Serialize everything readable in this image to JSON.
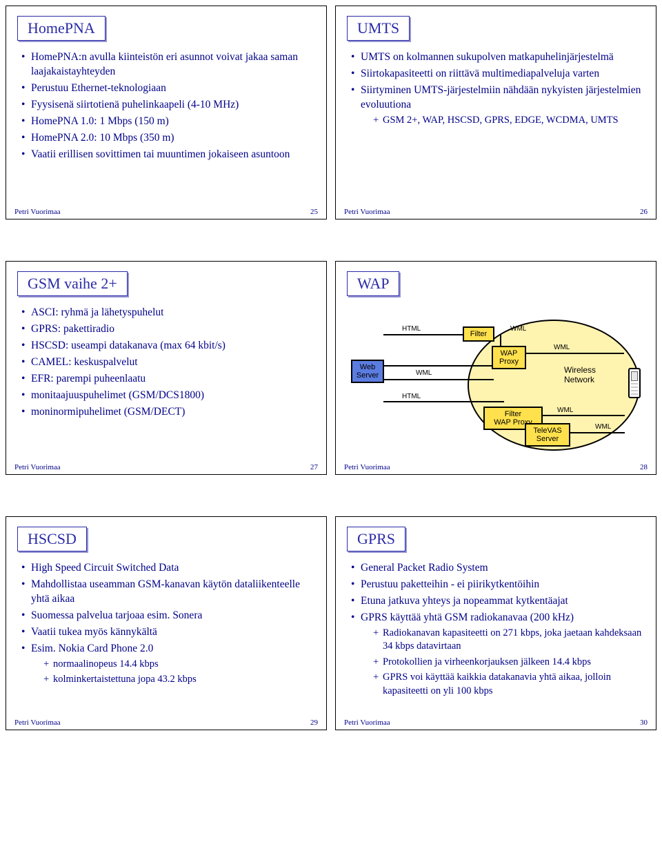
{
  "footer_author": "Petri Vuorimaa",
  "slides": {
    "s25": {
      "title": "HomePNA",
      "page": "25",
      "items": [
        "HomePNA:n avulla kiinteistön eri asunnot voivat jakaa saman laajakaistayhteyden",
        "Perustuu Ethernet-teknologiaan",
        "Fyysisenä siirtotienä puhelinkaapeli (4-10 MHz)",
        "HomePNA 1.0: 1 Mbps (150 m)",
        "HomePNA 2.0: 10 Mbps (350 m)",
        "Vaatii erillisen sovittimen tai muuntimen jokaiseen asuntoon"
      ]
    },
    "s26": {
      "title": "UMTS",
      "page": "26",
      "items": [
        "UMTS on kolmannen sukupolven matkapuhelinjärjestelmä",
        "Siirtokapasiteetti on riittävä multimediapalveluja varten",
        "Siirtyminen UMTS-järjestelmiin nähdään nykyisten järjestelmien evoluutiona"
      ],
      "sub3": [
        "GSM 2+, WAP, HSCSD, GPRS, EDGE, WCDMA, UMTS"
      ]
    },
    "s27": {
      "title": "GSM vaihe 2+",
      "page": "27",
      "items": [
        "ASCI: ryhmä ja lähetyspuhelut",
        "GPRS: pakettiradio",
        "HSCSD: useampi datakanava (max 64 kbit/s)",
        "CAMEL: keskuspalvelut",
        "EFR: parempi puheenlaatu",
        "monitaajuuspuhelimet (GSM/DCS1800)",
        "moninormipuhelimet (GSM/DECT)"
      ]
    },
    "s28": {
      "title": "WAP",
      "page": "28",
      "diagram": {
        "web_server": "Web\nServer",
        "filter1": "Filter",
        "wap_proxy": "WAP\nProxy",
        "filter_wap_proxy": "Filter\nWAP Proxy",
        "televas": "TeleVAS\nServer",
        "wireless_network": "Wireless\nNetwork",
        "labels": {
          "html": "HTML",
          "wml": "WML"
        },
        "colors": {
          "blue": "#5b7ce0",
          "yellow": "#ffe14d",
          "oval": "#fff3b0"
        }
      }
    },
    "s29": {
      "title": "HSCSD",
      "page": "29",
      "items": [
        "High Speed Circuit Switched Data",
        "Mahdollistaa useamman GSM-kanavan käytön dataliikenteelle yhtä aikaa",
        "Suomessa palvelua tarjoaa esim. Sonera",
        "Vaatii tukea myös kännykältä",
        "Esim. Nokia Card Phone 2.0"
      ],
      "sub5": [
        "normaalinopeus 14.4 kbps",
        "kolminkertaistettuna jopa 43.2 kbps"
      ]
    },
    "s30": {
      "title": "GPRS",
      "page": "30",
      "items": [
        "General Packet Radio System",
        "Perustuu paketteihin - ei piirikytkentöihin",
        "Etuna jatkuva yhteys ja nopeammat kytkentäajat",
        "GPRS käyttää yhtä GSM radiokanavaa (200 kHz)"
      ],
      "sub4": [
        "Radiokanavan kapasiteetti on 271 kbps, joka jaetaan kahdeksaan 34 kbps datavirtaan",
        "Protokollien ja virheenkorjauksen jälkeen 14.4 kbps",
        "GPRS voi käyttää kaikkia datakanavia yhtä aikaa, jolloin kapasiteetti on yli 100 kbps"
      ]
    }
  }
}
